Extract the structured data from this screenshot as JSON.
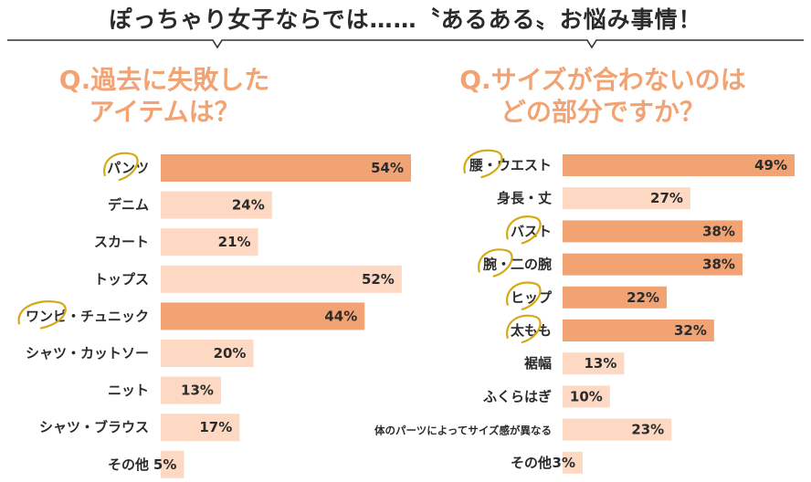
{
  "header": {
    "title": "ぽっちゃり女子ならでは……〝あるある〟お悩み事情！"
  },
  "colors": {
    "highlight": "#f2a374",
    "normal": "#fdd9c3",
    "circle": "#d4a914",
    "question": "#f2a374"
  },
  "q1": {
    "title_line1": "Q.過去に失敗した",
    "title_line2": "アイテムは？"
  },
  "q2": {
    "title_line1": "Q.サイズが合わないのは",
    "title_line2": "どの部分ですか？"
  },
  "chart_data": [
    {
      "type": "bar",
      "orientation": "horizontal",
      "title": "Q.過去に失敗したアイテムは？",
      "categories": [
        "パンツ",
        "デニム",
        "スカート",
        "トップス",
        "ワンピ・チュニック",
        "シャツ・カットソー",
        "ニット",
        "シャツ・ブラウス",
        "その他"
      ],
      "values": [
        54,
        24,
        21,
        52,
        44,
        20,
        13,
        17,
        5
      ],
      "value_labels": [
        "54%",
        "24%",
        "21%",
        "52%",
        "44%",
        "20%",
        "13%",
        "17%",
        "5%"
      ],
      "highlighted": [
        true,
        false,
        false,
        false,
        true,
        false,
        false,
        false,
        false
      ],
      "circled": [
        true,
        false,
        false,
        false,
        true,
        false,
        false,
        false,
        false
      ],
      "unit": "%",
      "xlim": [
        0,
        60
      ],
      "grid": false
    },
    {
      "type": "bar",
      "orientation": "horizontal",
      "title": "Q.サイズが合わないのはどの部分ですか？",
      "categories": [
        "腰・ウエスト",
        "身長・丈",
        "バスト",
        "腕・二の腕",
        "ヒップ",
        "太もも",
        "裾幅",
        "ふくらはぎ",
        "体のパーツによってサイズ感が異なる",
        "その他"
      ],
      "values": [
        49,
        27,
        38,
        38,
        22,
        32,
        13,
        10,
        23,
        3
      ],
      "value_labels": [
        "49%",
        "27%",
        "38%",
        "38%",
        "22%",
        "32%",
        "13%",
        "10%",
        "23%",
        "3%"
      ],
      "highlighted": [
        true,
        false,
        true,
        true,
        true,
        true,
        false,
        false,
        false,
        false
      ],
      "circled": [
        true,
        false,
        true,
        true,
        true,
        true,
        false,
        false,
        false,
        false
      ],
      "unit": "%",
      "xlim": [
        0,
        55
      ],
      "grid": false
    }
  ]
}
